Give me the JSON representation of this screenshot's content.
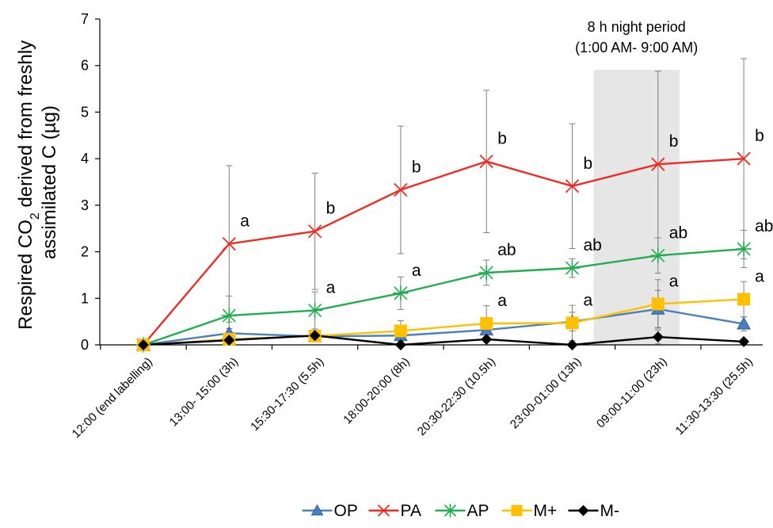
{
  "chart_data": {
    "type": "line",
    "ylabel_line1_prefix": "Respired CO",
    "ylabel_sub": "2",
    "ylabel_line1_suffix": " derived from freshly",
    "ylabel_line2": "assimilated C (µg)",
    "ylim": [
      0,
      7
    ],
    "yticks": [
      "0",
      "1",
      "2",
      "3",
      "4",
      "5",
      "6",
      "7"
    ],
    "categories": [
      "12:00 (end labelling)",
      "13:00- 15:00 (3h)",
      "15:30-17:30 (5.5h)",
      "18:00-20:00 (8h)",
      "20:30-22:30 (10.5h)",
      "23:00-01:00 (13h)",
      "09:00-11:00 (23h)",
      "11:30-13:30 (25.5h)"
    ],
    "night_period": {
      "line1": "8 h night period",
      "line2": "(1:00 AM- 9:00 AM)",
      "from_index": 5.25,
      "to_index": 6.25
    },
    "series": [
      {
        "name": "OP",
        "color": "#4a7fc0",
        "marker": "triangle",
        "values": [
          0,
          0.25,
          0.18,
          0.2,
          0.32,
          0.5,
          0.77,
          0.45
        ],
        "err": [
          0,
          0.1,
          0.1,
          0.1,
          0.15,
          0.2,
          0.4,
          0.15
        ]
      },
      {
        "name": "PA",
        "color": "#ef2b24",
        "marker": "x",
        "values": [
          0,
          2.17,
          2.44,
          3.33,
          3.94,
          3.41,
          3.88,
          4.0
        ],
        "err": [
          0,
          1.68,
          1.25,
          1.37,
          1.53,
          1.34,
          2.0,
          2.15
        ]
      },
      {
        "name": "AP",
        "color": "#22ad4e",
        "marker": "star",
        "values": [
          0,
          0.63,
          0.74,
          1.11,
          1.55,
          1.65,
          1.92,
          2.06
        ],
        "err": [
          0,
          0.42,
          0.4,
          0.35,
          0.27,
          0.2,
          0.38,
          0.4
        ]
      },
      {
        "name": "M+",
        "color": "#ffc000",
        "marker": "square",
        "values": [
          0,
          0.12,
          0.19,
          0.3,
          0.46,
          0.47,
          0.88,
          0.98
        ],
        "err": [
          0,
          0.08,
          0.1,
          0.22,
          0.38,
          0.38,
          0.52,
          0.38
        ]
      },
      {
        "name": "M-",
        "color": "#000000",
        "marker": "diamond",
        "values": [
          0,
          0.1,
          0.2,
          0.0,
          0.12,
          0.0,
          0.17,
          0.07
        ],
        "err": [
          0,
          0.05,
          0.05,
          0.05,
          0.05,
          0.05,
          0.15,
          0.05
        ]
      }
    ],
    "significance_labels": [
      {
        "text": "a",
        "index": 1,
        "value": 2.17
      },
      {
        "text": "b",
        "index": 2,
        "value": 2.44
      },
      {
        "text": "a",
        "index": 2,
        "value": 0.74
      },
      {
        "text": "b",
        "index": 3,
        "value": 3.33
      },
      {
        "text": "a",
        "index": 3,
        "value": 1.11
      },
      {
        "text": "b",
        "index": 4,
        "value": 3.94
      },
      {
        "text": "ab",
        "index": 4,
        "value": 1.55
      },
      {
        "text": "a",
        "index": 4,
        "value": 0.46
      },
      {
        "text": "b",
        "index": 5,
        "value": 3.41
      },
      {
        "text": "ab",
        "index": 5,
        "value": 1.65
      },
      {
        "text": "a",
        "index": 5,
        "value": 0.47
      },
      {
        "text": "b",
        "index": 6,
        "value": 3.88
      },
      {
        "text": "ab",
        "index": 6,
        "value": 1.92
      },
      {
        "text": "a",
        "index": 6,
        "value": 0.88
      },
      {
        "text": "b",
        "index": 7,
        "value": 4.0
      },
      {
        "text": "ab",
        "index": 7,
        "value": 2.06
      },
      {
        "text": "a",
        "index": 7,
        "value": 0.98
      }
    ],
    "legend_position": "bottom"
  }
}
